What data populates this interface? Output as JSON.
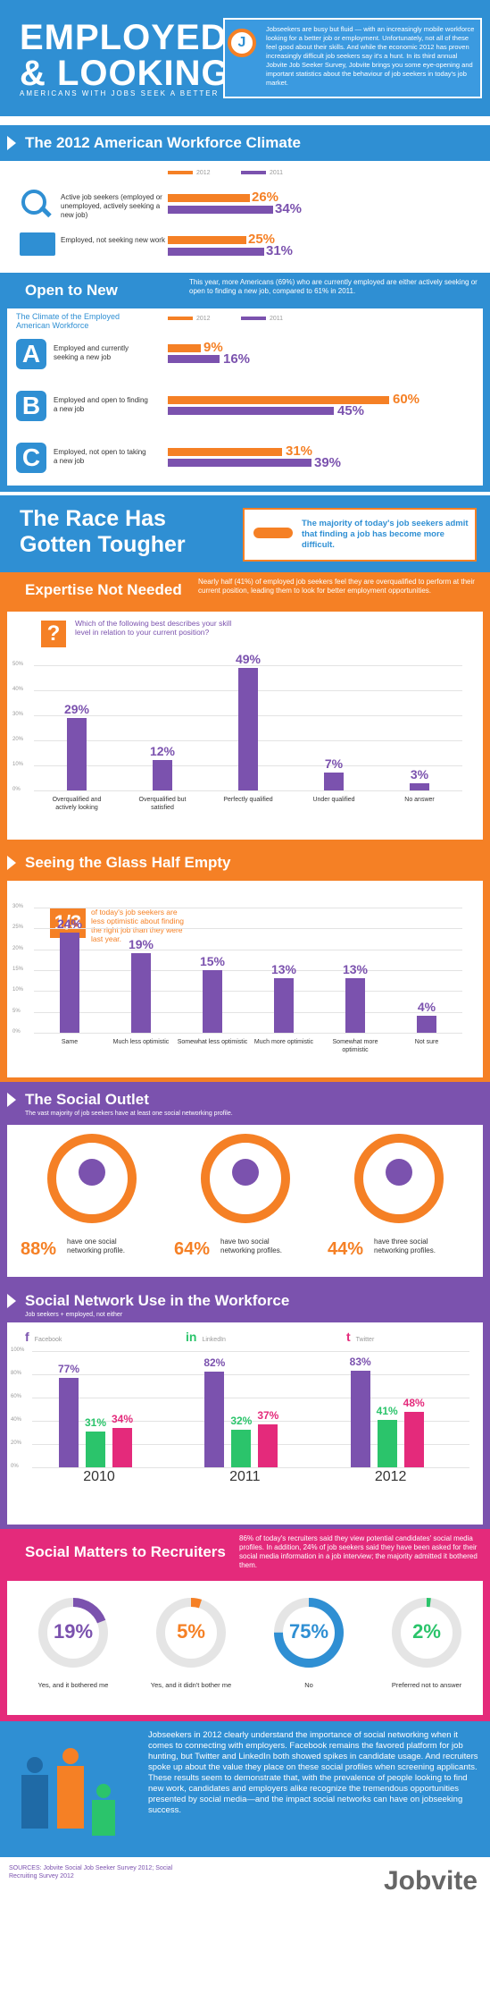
{
  "hero": {
    "title1": "EMPLOYED",
    "title2": "& LOOKING",
    "subtitle": "AMERICANS WITH JOBS SEEK A BETTER DEAL",
    "intro": "Jobseekers are busy but fluid — with an increasingly mobile workforce looking for a better job or employment. Unfortunately, not all of these feel good about their skills. And while the economic 2012 has proven increasingly difficult job seekers say it's a hunt. In its third annual Jobvite Job Seeker Survey, Jobvite brings you some eye-opening and important statistics about the behaviour of job seekers in today's job market.",
    "badge": "J"
  },
  "s1": {
    "title": "The 2012 American Workforce Climate",
    "legend2012": "2012",
    "legend2011": "2011",
    "rows": [
      {
        "label": "Active job seekers (employed or unemployed, actively seeking a new job)",
        "v2012": "26%",
        "v2011": "34%",
        "icon": "search-icon"
      },
      {
        "label": "Employed, not seeking new work",
        "v2012": "25%",
        "v2011": "31%",
        "icon": "folder-icon"
      }
    ]
  },
  "s2": {
    "title": "Open to New Prospects",
    "note": "This year, more Americans (69%) who are currently employed are either actively seeking or open to finding a new job, compared to 61% in 2011.",
    "chart_title": "The Climate of the Employed American Workforce",
    "legend2012": "2012",
    "legend2011": "2011",
    "rows": [
      {
        "letter": "A",
        "label": "Employed and currently seeking a new job",
        "v2012": "9%",
        "v2011": "16%"
      },
      {
        "letter": "B",
        "label": "Employed and open to finding a new job",
        "v2012": "60%",
        "v2011": "45%"
      },
      {
        "letter": "C",
        "label": "Employed, not open to taking a new job",
        "v2012": "31%",
        "v2011": "39%"
      }
    ]
  },
  "s3": {
    "title1": "The Race Has",
    "title2": "Gotten Tougher",
    "note": "The majority of today's job seekers admit that finding a job has become more difficult."
  },
  "s4": {
    "title": "Expertise Not Needed",
    "note": "Nearly half (41%) of employed job seekers feel they are overqualified to perform at their current position, leading them to look for better employment opportunities.",
    "question": "Which of the following best describes your skill level in relation to your current position?",
    "qmark": "?"
  },
  "s5": {
    "title": "Seeing the Glass Half Empty",
    "frac": "1/3",
    "note": "of today's job seekers are less optimistic about finding the right job than they were last year."
  },
  "s6": {
    "title": "The Social Outlet",
    "sub": "The vast majority of job seekers have at least one social networking profile.",
    "items": [
      {
        "pct": "88%",
        "text": "have one social networking profile."
      },
      {
        "pct": "64%",
        "text": "have two social networking profiles."
      },
      {
        "pct": "44%",
        "text": "have three social networking profiles."
      }
    ]
  },
  "s7": {
    "title": "Social Network Use in the Workforce",
    "sub": "Job seekers + employed, not either",
    "legend": [
      {
        "name": "Facebook",
        "icon": "facebook-icon",
        "glyph": "f"
      },
      {
        "name": "LinkedIn",
        "icon": "linkedin-icon",
        "glyph": "in"
      },
      {
        "name": "Twitter",
        "icon": "twitter-icon",
        "glyph": "t"
      }
    ]
  },
  "s8": {
    "title": "Social Matters to Recruiters",
    "note": "86% of today's recruiters said they view potential candidates' social media profiles. In addition, 24% of job seekers said they have been asked for their social media information in a job interview; the majority admitted it bothered them.",
    "donuts": [
      {
        "pct": "19%",
        "label": "Yes, and it bothered me",
        "color": "#7b52ae",
        "frac": 0.19
      },
      {
        "pct": "5%",
        "label": "Yes, and it didn't bother me",
        "color": "#f58025",
        "frac": 0.05
      },
      {
        "pct": "75%",
        "label": "No",
        "color": "#2f8fd3",
        "frac": 0.75
      },
      {
        "pct": "2%",
        "label": "Preferred not to answer",
        "color": "#2bc46b",
        "frac": 0.02
      }
    ]
  },
  "s9": {
    "text": "Jobseekers in 2012 clearly understand the importance of social networking when it comes to connecting with employers. Facebook remains the favored platform for job hunting, but Twitter and LinkedIn both showed spikes in candidate usage. And recruiters spoke up about the value they place on these social profiles when screening applicants. These results seem to demonstrate that, with the prevalence of people looking to find new work, candidates and employers alike recognize the tremendous opportunities presented by social media—and the impact social networks can have on jobseeking success."
  },
  "footer": {
    "sources": "SOURCES: Jobvite Social Job Seeker Survey 2012; Social Recruiting Survey 2012",
    "logo": "Jobvite"
  },
  "chart_data": [
    {
      "type": "bar",
      "title": "",
      "categories": [
        "Overqualified and actively looking",
        "Overqualified but satisfied",
        "Perfectly qualified",
        "Under qualified",
        "No answer"
      ],
      "values": [
        29,
        12,
        49,
        7,
        3
      ],
      "ylim": [
        0,
        50
      ],
      "yticks": [
        "50%",
        "40%",
        "30%",
        "20%",
        "10%",
        "0%"
      ]
    },
    {
      "type": "bar",
      "title": "",
      "categories": [
        "Same",
        "Much less optimistic",
        "Somewhat less optimistic",
        "Much more optimistic",
        "Somewhat more optimistic",
        "Not sure"
      ],
      "values": [
        24,
        19,
        15,
        13,
        13,
        4
      ],
      "ylim": [
        0,
        30
      ],
      "yticks": [
        "30%",
        "25%",
        "20%",
        "15%",
        "10%",
        "5%",
        "0%"
      ]
    },
    {
      "type": "bar",
      "title": "",
      "categories": [
        "2010",
        "2011",
        "2012"
      ],
      "series": [
        {
          "name": "Facebook",
          "values": [
            77,
            82,
            83
          ]
        },
        {
          "name": "LinkedIn",
          "values": [
            31,
            32,
            41
          ]
        },
        {
          "name": "Twitter",
          "values": [
            34,
            37,
            48
          ]
        }
      ],
      "ylim": [
        0,
        100
      ],
      "yticks": [
        "100%",
        "80%",
        "60%",
        "40%",
        "20%",
        "0%"
      ]
    }
  ]
}
